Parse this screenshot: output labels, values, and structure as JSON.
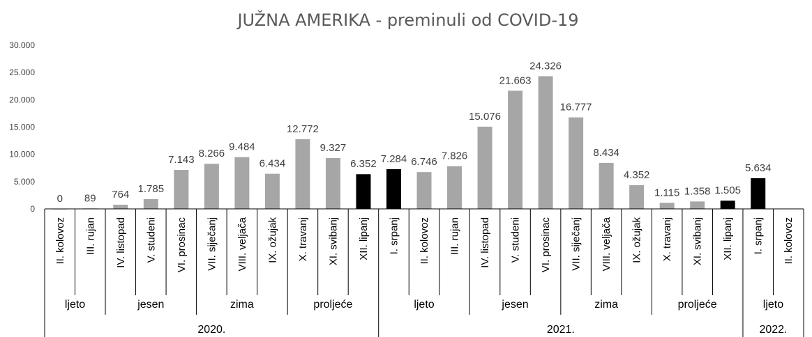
{
  "chart_data": {
    "type": "bar",
    "title": "JUŽNA AMERIKA - preminuli od COVID-19",
    "ylim": [
      0,
      30000
    ],
    "yticks": [
      "0",
      "5.000",
      "10.000",
      "15.000",
      "20.000",
      "25.000",
      "30.000"
    ],
    "grid": false,
    "categories": [
      "II. kolovoz",
      "III. rujan",
      "IV. listopad",
      "V. studeni",
      "VI. prosinac",
      "VII. siječanj",
      "VIII. veljača",
      "IX. ožujak",
      "X. travanj",
      "XI. svibanj",
      "XII. lipanj",
      "I. srpanj",
      "II. kolovoz",
      "III. rujan",
      "IV. listopad",
      "V. studeni",
      "VI. prosinac",
      "VII. siječanj",
      "VIII. veljača",
      "IX. ožujak",
      "X. travanj",
      "XI. svibanj",
      "XII. lipanj",
      "I. srpanj",
      "II. kolovoz"
    ],
    "values": [
      0,
      89,
      764,
      1785,
      7143,
      8266,
      9484,
      6434,
      12772,
      9327,
      6352,
      7284,
      6746,
      7826,
      15076,
      21663,
      24326,
      16777,
      8434,
      4352,
      1115,
      1358,
      1505,
      5634,
      null
    ],
    "data_labels": [
      "0",
      "89",
      "764",
      "1.785",
      "7.143",
      "8.266",
      "9.484",
      "6.434",
      "12.772",
      "9.327",
      "6.352",
      "7.284",
      "6.746",
      "7.826",
      "15.076",
      "21.663",
      "24.326",
      "16.777",
      "8.434",
      "4.352",
      "1.115",
      "1.358",
      "1.505",
      "5.634",
      ""
    ],
    "highlighted": [
      false,
      false,
      false,
      false,
      false,
      false,
      false,
      false,
      false,
      false,
      true,
      true,
      false,
      false,
      false,
      false,
      false,
      false,
      false,
      false,
      false,
      false,
      true,
      true,
      false
    ],
    "colors": {
      "bar": "#a6a6a6",
      "highlight": "#000000"
    },
    "seasons": [
      {
        "label": "ljeto",
        "start": 0,
        "end": 1
      },
      {
        "label": "jesen",
        "start": 2,
        "end": 4
      },
      {
        "label": "zima",
        "start": 5,
        "end": 7
      },
      {
        "label": "proljeće",
        "start": 8,
        "end": 10
      },
      {
        "label": "ljeto",
        "start": 11,
        "end": 13
      },
      {
        "label": "jesen",
        "start": 14,
        "end": 16
      },
      {
        "label": "zima",
        "start": 17,
        "end": 19
      },
      {
        "label": "proljeće",
        "start": 20,
        "end": 22
      },
      {
        "label": "ljeto",
        "start": 23,
        "end": 24
      }
    ],
    "years": [
      {
        "label": "2020.",
        "start": 0,
        "end": 10
      },
      {
        "label": "2021.",
        "start": 11,
        "end": 22
      },
      {
        "label": "2022.",
        "start": 23,
        "end": 24
      }
    ]
  }
}
